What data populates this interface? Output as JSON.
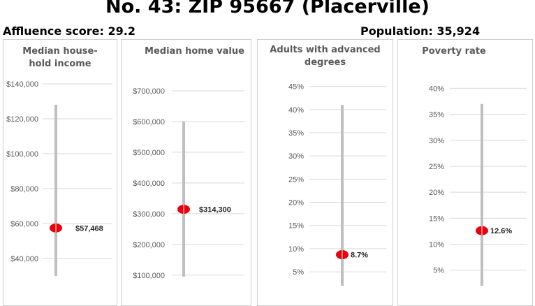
{
  "header": {
    "title": "No. 43: ZIP 95667 (Placerville)",
    "affluence_label": "Affluence score: 29.2",
    "population_label": "Population: 35,924"
  },
  "colors": {
    "marker": "#e8000b",
    "range_line": "#bfbfbf",
    "grid": "#d9d9d9"
  },
  "chart_data": [
    {
      "type": "range-dot",
      "title_lines": [
        "Median house-",
        "hold income"
      ],
      "ticks": [
        "$40,000",
        "$60,000",
        "$80,000",
        "$100,000",
        "$120,000",
        "$140,000"
      ],
      "tick_values": [
        40000,
        60000,
        80000,
        100000,
        120000,
        140000
      ],
      "ylim": [
        26000,
        142000
      ],
      "range": [
        30000,
        128000
      ],
      "value": 57468,
      "value_label": "$57,468"
    },
    {
      "type": "range-dot",
      "title_lines": [
        "Median home value"
      ],
      "ticks": [
        "$100,000",
        "$200,000",
        "$300,000",
        "$400,000",
        "$500,000",
        "$600,000",
        "$700,000"
      ],
      "tick_values": [
        100000,
        200000,
        300000,
        400000,
        500000,
        600000,
        700000
      ],
      "ylim": [
        70000,
        725000
      ],
      "range": [
        95000,
        600000
      ],
      "value": 314300,
      "value_label": "$314,300"
    },
    {
      "type": "range-dot",
      "title_lines": [
        "Adults with advanced",
        "degrees"
      ],
      "ticks": [
        "5%",
        "10%",
        "15%",
        "20%",
        "25%",
        "30%",
        "35%",
        "40%",
        "45%"
      ],
      "tick_values": [
        5,
        10,
        15,
        20,
        25,
        30,
        35,
        40,
        45
      ],
      "ylim": [
        2,
        46
      ],
      "range": [
        2,
        41
      ],
      "value": 8.7,
      "value_label": "8.7%"
    },
    {
      "type": "range-dot",
      "title_lines": [
        "Poverty rate"
      ],
      "ticks": [
        "5%",
        "10%",
        "15%",
        "20%",
        "25%",
        "30%",
        "35%",
        "40%"
      ],
      "tick_values": [
        5,
        10,
        15,
        20,
        25,
        30,
        35,
        40
      ],
      "ylim": [
        2,
        41
      ],
      "range": [
        2,
        37
      ],
      "value": 12.6,
      "value_label": "12.6%"
    }
  ]
}
